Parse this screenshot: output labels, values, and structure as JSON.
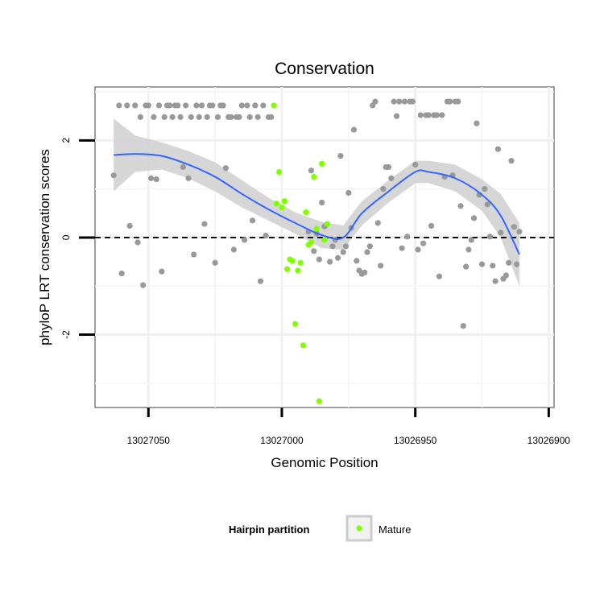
{
  "chart_data": {
    "type": "scatter",
    "title": "Conservation",
    "xlabel": "Genomic Position",
    "ylabel": "phyloP LRT conservation scores",
    "x_reversed": true,
    "xlim": [
      13027070,
      13026898
    ],
    "ylim": [
      -3.5,
      3.1
    ],
    "x_ticks": [
      13027050,
      13027000,
      13026950,
      13026900
    ],
    "y_ticks": [
      -2,
      0,
      2
    ],
    "grid": true,
    "reference_line": {
      "y": 0,
      "style": "dashed"
    },
    "legend": {
      "title": "Hairpin partition",
      "placement": "bottom",
      "entries": [
        {
          "name": "Mature",
          "color": "#7fff00"
        }
      ]
    },
    "colors": {
      "other": "#999999",
      "mature": "#7fff00",
      "trend": "#3366ff",
      "band": "#cfcfcf"
    },
    "series": [
      {
        "name": "",
        "color": "#999999",
        "points": [
          [
            13027063,
            1.28
          ],
          [
            13027061,
            2.72
          ],
          [
            13027060,
            -0.74
          ],
          [
            13027058,
            2.72
          ],
          [
            13027057,
            0.24
          ],
          [
            13027055,
            2.72
          ],
          [
            13027054,
            -0.1
          ],
          [
            13027053,
            2.48
          ],
          [
            13027052,
            -0.98
          ],
          [
            13027051,
            2.72
          ],
          [
            13027050,
            2.72
          ],
          [
            13027049,
            1.22
          ],
          [
            13027048,
            2.48
          ],
          [
            13027047,
            1.2
          ],
          [
            13027046,
            2.72
          ],
          [
            13027045,
            -0.7
          ],
          [
            13027044,
            2.48
          ],
          [
            13027043,
            2.72
          ],
          [
            13027042,
            2.72
          ],
          [
            13027041,
            2.48
          ],
          [
            13027040,
            2.72
          ],
          [
            13027039,
            2.72
          ],
          [
            13027038,
            2.48
          ],
          [
            13027037,
            1.45
          ],
          [
            13027036,
            2.72
          ],
          [
            13027035,
            1.22
          ],
          [
            13027034,
            2.48
          ],
          [
            13027033,
            -0.35
          ],
          [
            13027032,
            2.72
          ],
          [
            13027031,
            2.48
          ],
          [
            13027030,
            2.72
          ],
          [
            13027029,
            0.28
          ],
          [
            13027028,
            2.48
          ],
          [
            13027027,
            2.72
          ],
          [
            13027026,
            2.72
          ],
          [
            13027025,
            -0.52
          ],
          [
            13027024,
            2.48
          ],
          [
            13027023,
            2.72
          ],
          [
            13027022,
            2.72
          ],
          [
            13027021,
            1.43
          ],
          [
            13027020,
            2.48
          ],
          [
            13027019,
            2.48
          ],
          [
            13027018,
            -0.25
          ],
          [
            13027017,
            2.48
          ],
          [
            13027016,
            2.48
          ],
          [
            13027015,
            2.72
          ],
          [
            13027014,
            -0.05
          ],
          [
            13027013,
            2.72
          ],
          [
            13027012,
            2.48
          ],
          [
            13027011,
            0.35
          ],
          [
            13027010,
            2.72
          ],
          [
            13027009,
            2.48
          ],
          [
            13027008,
            -0.9
          ],
          [
            13027007,
            2.72
          ],
          [
            13027006,
            0.04
          ],
          [
            13027005,
            2.48
          ],
          [
            13027004,
            2.48
          ],
          [
            13026990,
            0.12
          ],
          [
            13026989,
            1.38
          ],
          [
            13026988,
            -0.28
          ],
          [
            13026987,
            0.08
          ],
          [
            13026986,
            -0.45
          ],
          [
            13026985,
            0.72
          ],
          [
            13026984,
            0.23
          ],
          [
            13026983,
            0.28
          ],
          [
            13026982,
            -0.5
          ],
          [
            13026981,
            -0.18
          ],
          [
            13026980,
            -0.05
          ],
          [
            13026979,
            -0.42
          ],
          [
            13026978,
            1.68
          ],
          [
            13026977,
            -0.3
          ],
          [
            13026976,
            -0.18
          ],
          [
            13026975,
            0.92
          ],
          [
            13026974,
            0.2
          ],
          [
            13026973,
            2.22
          ],
          [
            13026972,
            -0.48
          ],
          [
            13026971,
            -0.68
          ],
          [
            13026970,
            -0.75
          ],
          [
            13026969,
            -0.72
          ],
          [
            13026968,
            -0.3
          ],
          [
            13026967,
            -0.18
          ],
          [
            13026966,
            2.72
          ],
          [
            13026965,
            2.8
          ],
          [
            13026964,
            0.3
          ],
          [
            13026963,
            -0.58
          ],
          [
            13026962,
            1.0
          ],
          [
            13026961,
            1.45
          ],
          [
            13026960,
            1.45
          ],
          [
            13026959,
            1.22
          ],
          [
            13026958,
            2.8
          ],
          [
            13026957,
            2.5
          ],
          [
            13026956,
            2.8
          ],
          [
            13026955,
            -0.22
          ],
          [
            13026954,
            2.8
          ],
          [
            13026953,
            0.02
          ],
          [
            13026952,
            2.8
          ],
          [
            13026951,
            2.8
          ],
          [
            13026950,
            1.5
          ],
          [
            13026949,
            -0.25
          ],
          [
            13026948,
            2.52
          ],
          [
            13026947,
            -0.12
          ],
          [
            13026946,
            2.52
          ],
          [
            13026945,
            2.52
          ],
          [
            13026944,
            0.24
          ],
          [
            13026943,
            2.52
          ],
          [
            13026942,
            2.52
          ],
          [
            13026941,
            -0.8
          ],
          [
            13026940,
            2.52
          ],
          [
            13026939,
            1.25
          ],
          [
            13026938,
            2.8
          ],
          [
            13026937,
            2.8
          ],
          [
            13026936,
            1.28
          ],
          [
            13026935,
            2.8
          ],
          [
            13026934,
            2.8
          ],
          [
            13026933,
            0.65
          ],
          [
            13026932,
            -1.82
          ],
          [
            13026931,
            -0.6
          ],
          [
            13026930,
            -0.25
          ],
          [
            13026929,
            -0.05
          ],
          [
            13026928,
            0.4
          ],
          [
            13026927,
            2.35
          ],
          [
            13026926,
            0.88
          ],
          [
            13026925,
            -0.55
          ],
          [
            13026924,
            1.0
          ],
          [
            13026923,
            0.68
          ],
          [
            13026922,
            0.02
          ],
          [
            13026921,
            -0.58
          ],
          [
            13026920,
            -0.9
          ],
          [
            13026919,
            1.82
          ],
          [
            13026918,
            0.1
          ],
          [
            13026917,
            -0.85
          ],
          [
            13026916,
            -0.78
          ],
          [
            13026915,
            -0.52
          ],
          [
            13026914,
            1.58
          ],
          [
            13026913,
            0.22
          ],
          [
            13026912,
            -0.55
          ],
          [
            13026911,
            0.12
          ]
        ]
      },
      {
        "name": "Mature",
        "color": "#7fff00",
        "points": [
          [
            13027003,
            2.72
          ],
          [
            13027002,
            0.7
          ],
          [
            13027001,
            1.35
          ],
          [
            13027000,
            0.62
          ],
          [
            13026999,
            0.75
          ],
          [
            13026998,
            -0.65
          ],
          [
            13026997,
            -0.45
          ],
          [
            13026996,
            -0.48
          ],
          [
            13026995,
            -1.78
          ],
          [
            13026994,
            -0.68
          ],
          [
            13026993,
            -0.52
          ],
          [
            13026992,
            -2.22
          ],
          [
            13026991,
            0.52
          ],
          [
            13026990,
            -0.15
          ],
          [
            13026989,
            -0.1
          ],
          [
            13026988,
            1.25
          ],
          [
            13026987,
            0.18
          ],
          [
            13026986,
            -3.37
          ],
          [
            13026985,
            1.52
          ],
          [
            13026984,
            -0.05
          ],
          [
            13026983,
            0.28
          ]
        ]
      }
    ],
    "trend": {
      "method": "smooth",
      "x": [
        13027063,
        13027055,
        13027045,
        13027035,
        13027025,
        13027015,
        13027005,
        13026995,
        13026985,
        13026977,
        13026970,
        13026960,
        13026950,
        13026945,
        13026935,
        13026925,
        13026918,
        13026911
      ],
      "y": [
        1.7,
        1.72,
        1.68,
        1.5,
        1.25,
        0.9,
        0.58,
        0.3,
        0.05,
        0.0,
        0.5,
        0.95,
        1.35,
        1.35,
        1.22,
        0.88,
        0.45,
        -0.35
      ],
      "lower": [
        0.95,
        1.35,
        1.4,
        1.22,
        0.95,
        0.62,
        0.35,
        0.08,
        -0.22,
        -0.25,
        0.25,
        0.72,
        1.12,
        1.12,
        0.95,
        0.55,
        0.0,
        -1.0
      ],
      "upper": [
        2.45,
        2.1,
        1.96,
        1.78,
        1.55,
        1.18,
        0.82,
        0.52,
        0.32,
        0.25,
        0.75,
        1.18,
        1.58,
        1.58,
        1.5,
        1.2,
        0.9,
        0.3
      ]
    }
  }
}
